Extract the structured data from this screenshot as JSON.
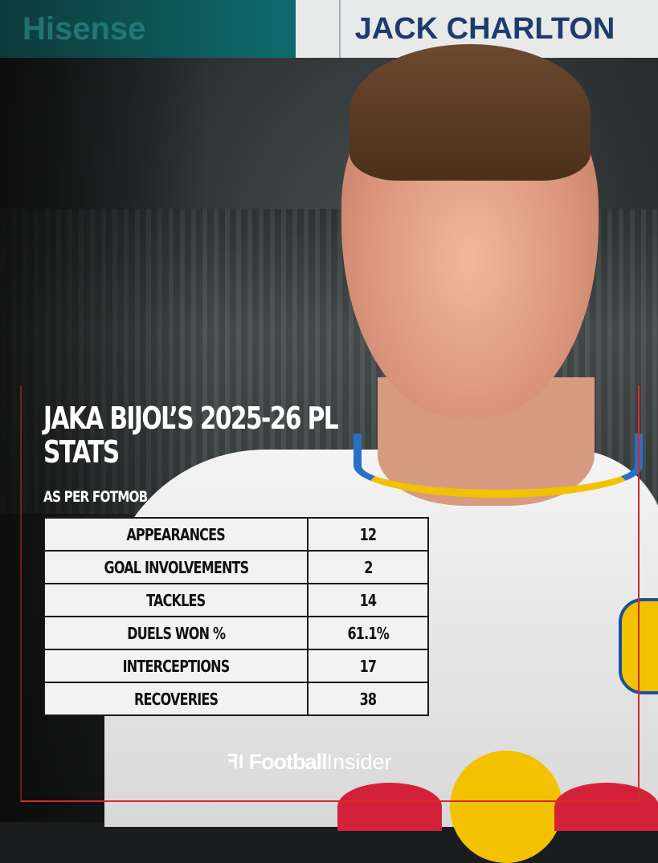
{
  "banner": {
    "left_sponsor": "Hisense",
    "right_text": "JACK CHARLTON"
  },
  "title": "JAKA BIJOL’S 2025-26 PL STATS",
  "subtitle": "AS PER FOTMOB",
  "stats": [
    {
      "label": "APPEARANCES",
      "value": "12"
    },
    {
      "label": "GOAL INVOLVEMENTS",
      "value": "2"
    },
    {
      "label": "TACKLES",
      "value": "14"
    },
    {
      "label": "DUELS WON %",
      "value": "61.1%"
    },
    {
      "label": "INTERCEPTIONS",
      "value": "17"
    },
    {
      "label": "RECOVERIES",
      "value": "38"
    }
  ],
  "logo": {
    "bold": "Football",
    "light": "Insider"
  },
  "colors": {
    "frame": "#d42a2a",
    "banner_text": "#1d3c6e"
  }
}
